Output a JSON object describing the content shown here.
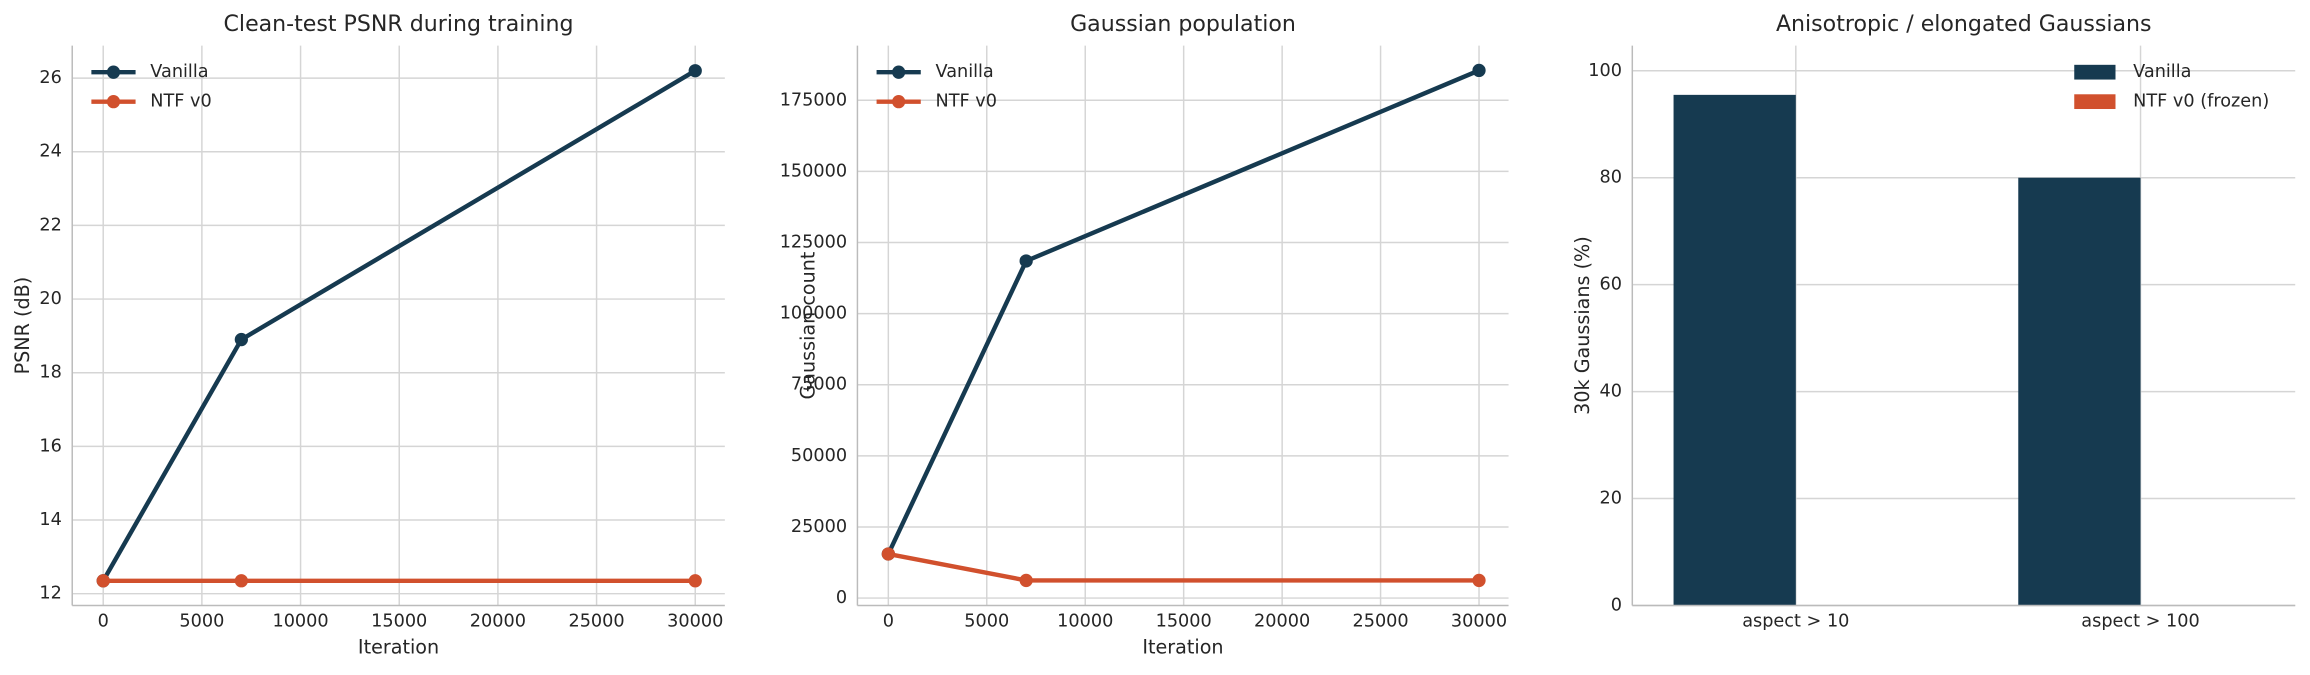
{
  "chart_data": [
    {
      "type": "line",
      "title": "Clean-test PSNR during training",
      "x_label": "Iteration",
      "y_label": "PSNR (dB)",
      "x": [
        0,
        7000,
        30000
      ],
      "series": [
        {
          "name": "Vanilla",
          "color": "#163a50",
          "values": [
            12.35,
            18.9,
            26.2
          ]
        },
        {
          "name": "NTF v0",
          "color": "#d1502d",
          "values": [
            12.35,
            12.35,
            12.35
          ]
        }
      ],
      "xlim": [
        -1570,
        31500
      ],
      "xticks": [
        0,
        5000,
        10000,
        15000,
        20000,
        25000,
        30000
      ],
      "ylim": [
        11.68,
        26.88
      ],
      "yticks": [
        12,
        14,
        16,
        18,
        20,
        22,
        24,
        26
      ],
      "grid": true,
      "legend": "upper left"
    },
    {
      "type": "line",
      "title": "Gaussian population",
      "x_label": "Iteration",
      "y_label": "Gaussian count",
      "x": [
        0,
        7000,
        30000
      ],
      "series": [
        {
          "name": "Vanilla",
          "color": "#163a50",
          "values": [
            15500,
            118500,
            185500
          ]
        },
        {
          "name": "NTF v0",
          "color": "#d1502d",
          "values": [
            15500,
            6200,
            6200
          ]
        }
      ],
      "xlim": [
        -1570,
        31500
      ],
      "xticks": [
        0,
        5000,
        10000,
        15000,
        20000,
        25000,
        30000
      ],
      "ylim": [
        -2600,
        194200
      ],
      "yticks": [
        0,
        25000,
        50000,
        75000,
        100000,
        125000,
        150000,
        175000
      ],
      "grid": true,
      "legend": "upper left"
    },
    {
      "type": "bar",
      "title": "Anisotropic / elongated Gaussians",
      "y_label": "30k Gaussians (%)",
      "categories": [
        "aspect > 10",
        "aspect > 100"
      ],
      "series": [
        {
          "name": "Vanilla",
          "color": "#163a50",
          "values": [
            95.5,
            80
          ]
        },
        {
          "name": "NTF v0 (frozen)",
          "color": "#d1502d",
          "values": [
            0,
            0
          ]
        }
      ],
      "ylim": [
        0,
        104.7
      ],
      "yticks": [
        0,
        20,
        40,
        60,
        80,
        100
      ],
      "grid": true,
      "legend": "upper right"
    }
  ]
}
